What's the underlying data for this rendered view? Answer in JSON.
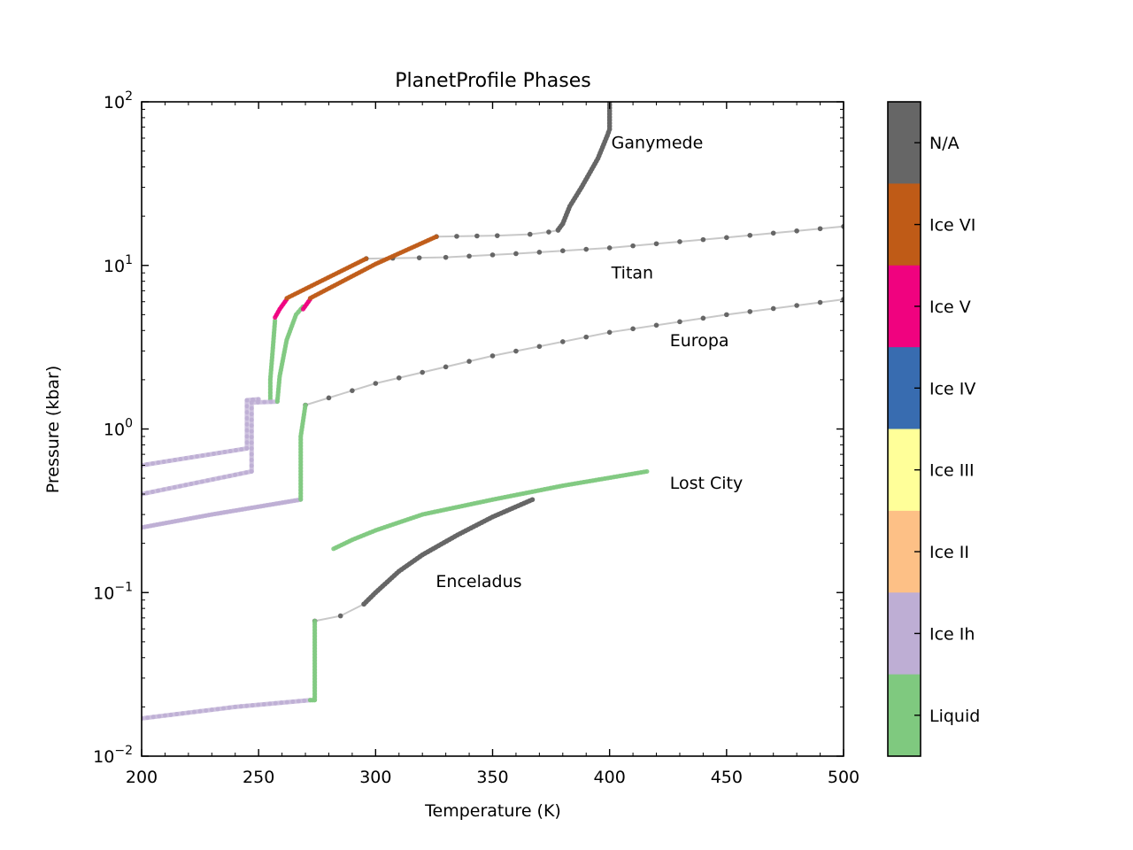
{
  "chart_data": {
    "type": "line",
    "title": "PlanetProfile Phases",
    "xlabel": "Temperature (K)",
    "ylabel": "Pressure (kbar)",
    "xlim": [
      200,
      500
    ],
    "ylim": [
      0.01,
      100
    ],
    "yscale": "log",
    "grid": false,
    "x_ticks": [
      200,
      250,
      300,
      350,
      400,
      450,
      500
    ],
    "x_tick_labels": [
      "200",
      "250",
      "300",
      "350",
      "400",
      "450",
      "500"
    ],
    "y_ticks": [
      0.01,
      0.1,
      1,
      10,
      100
    ],
    "y_tick_labels": [
      {
        "base": "10",
        "exp": "−2"
      },
      {
        "base": "10",
        "exp": "−1"
      },
      {
        "base": "10",
        "exp": "0"
      },
      {
        "base": "10",
        "exp": "1"
      },
      {
        "base": "10",
        "exp": "2"
      }
    ],
    "phases": [
      {
        "name": "N/A",
        "color": "#666666"
      },
      {
        "name": "Ice VI",
        "color": "#bf5b17"
      },
      {
        "name": "Ice V",
        "color": "#f0027f"
      },
      {
        "name": "Ice IV",
        "color": "#386cb0"
      },
      {
        "name": "Ice III",
        "color": "#ffff99"
      },
      {
        "name": "Ice II",
        "color": "#fdc086"
      },
      {
        "name": "Ice Ih",
        "color": "#beaed4"
      },
      {
        "name": "Liquid",
        "color": "#7fc97f"
      }
    ],
    "annotations": [
      {
        "text": "Ganymede",
        "x": 400,
        "y": 52
      },
      {
        "text": "Titan",
        "x": 400,
        "y": 8.3
      },
      {
        "text": "Europa",
        "x": 425,
        "y": 3.2
      },
      {
        "text": "Lost City",
        "x": 425,
        "y": 0.43
      },
      {
        "text": "Enceladus",
        "x": 325,
        "y": 0.108
      }
    ],
    "series": [
      {
        "label": "Ganymede",
        "segments": [
          {
            "phase": "Ice Ih",
            "points": [
              [
                200,
                0.6
              ],
              [
                245,
                0.76
              ]
            ]
          },
          {
            "phase": "Ice Ih",
            "points": [
              [
                245,
                0.76
              ],
              [
                245,
                1.5
              ],
              [
                250,
                1.52
              ]
            ]
          },
          {
            "phase": "Liquid",
            "points": [
              [
                255,
                1.52
              ],
              [
                255,
                2.0
              ],
              [
                256,
                3.0
              ],
              [
                257,
                4.6
              ]
            ]
          },
          {
            "phase": "Ice V",
            "points": [
              [
                257,
                4.8
              ],
              [
                259,
                5.4
              ],
              [
                262,
                6.2
              ]
            ]
          },
          {
            "phase": "Ice VI",
            "points": [
              [
                262,
                6.3
              ],
              [
                275,
                7.8
              ],
              [
                296,
                11
              ]
            ]
          }
        ],
        "tail": [
          [
            296,
            11
          ],
          [
            330,
            11.2
          ],
          [
            360,
            11.8
          ],
          [
            400,
            12.8
          ],
          [
            450,
            14.8
          ],
          [
            500,
            17.3
          ]
        ],
        "tail_phase": "N/A"
      },
      {
        "label": "Titan",
        "segments": [
          {
            "phase": "Ice Ih",
            "points": [
              [
                200,
                0.4
              ],
              [
                247,
                0.55
              ]
            ]
          },
          {
            "phase": "Ice Ih",
            "points": [
              [
                247,
                0.55
              ],
              [
                247,
                1.45
              ],
              [
                258,
                1.47
              ]
            ]
          },
          {
            "phase": "Liquid",
            "points": [
              [
                258,
                1.47
              ],
              [
                259,
                2.1
              ],
              [
                262,
                3.5
              ],
              [
                266,
                5.0
              ],
              [
                269,
                5.6
              ]
            ]
          },
          {
            "phase": "Ice V",
            "points": [
              [
                269,
                5.4
              ],
              [
                272,
                6.2
              ]
            ]
          },
          {
            "phase": "Ice VI",
            "points": [
              [
                272,
                6.3
              ],
              [
                300,
                10.2
              ],
              [
                326,
                15
              ]
            ]
          }
        ],
        "tail": [
          [
            326,
            15
          ],
          [
            352,
            15.2
          ],
          [
            366,
            15.5
          ],
          [
            374,
            16
          ],
          [
            378,
            16.4
          ]
        ],
        "tail_phase": "N/A",
        "dense": {
          "phase": "N/A",
          "points": [
            [
              378,
              16.5
            ],
            [
              380,
              18
            ],
            [
              383,
              23
            ],
            [
              388,
              30
            ],
            [
              395,
              45
            ],
            [
              399,
              62
            ],
            [
              400,
              68
            ],
            [
              400,
              100
            ]
          ]
        }
      },
      {
        "label": "Europa",
        "segments": [
          {
            "phase": "Ice Ih",
            "points": [
              [
                200,
                0.25
              ],
              [
                230,
                0.3
              ],
              [
                268,
                0.37
              ]
            ]
          },
          {
            "phase": "Liquid",
            "points": [
              [
                268,
                0.37
              ],
              [
                268,
                0.9
              ],
              [
                270,
                1.4
              ]
            ]
          }
        ],
        "tail": [
          [
            270,
            1.4
          ],
          [
            300,
            1.9
          ],
          [
            350,
            2.8
          ],
          [
            400,
            3.9
          ],
          [
            450,
            5.0
          ],
          [
            500,
            6.2
          ]
        ],
        "tail_phase": "N/A"
      },
      {
        "label": "Lost City",
        "segments": [
          {
            "phase": "Liquid",
            "points": [
              [
                282,
                0.185
              ],
              [
                290,
                0.21
              ],
              [
                300,
                0.24
              ],
              [
                320,
                0.3
              ],
              [
                350,
                0.37
              ],
              [
                380,
                0.45
              ],
              [
                416,
                0.55
              ]
            ]
          }
        ]
      },
      {
        "label": "Enceladus",
        "segments": [
          {
            "phase": "Ice Ih",
            "points": [
              [
                200,
                0.017
              ],
              [
                240,
                0.02
              ],
              [
                272,
                0.022
              ]
            ]
          },
          {
            "phase": "Liquid",
            "points": [
              [
                272,
                0.022
              ],
              [
                274,
                0.022
              ],
              [
                274,
                0.067
              ]
            ]
          }
        ],
        "tail": [
          [
            274,
            0.067
          ],
          [
            285,
            0.072
          ],
          [
            295,
            0.085
          ]
        ],
        "tail_phase": "N/A",
        "dense": {
          "phase": "N/A",
          "points": [
            [
              295,
              0.085
            ],
            [
              300,
              0.1
            ],
            [
              310,
              0.135
            ],
            [
              320,
              0.17
            ],
            [
              335,
              0.225
            ],
            [
              350,
              0.29
            ],
            [
              367,
              0.37
            ]
          ]
        }
      }
    ]
  }
}
